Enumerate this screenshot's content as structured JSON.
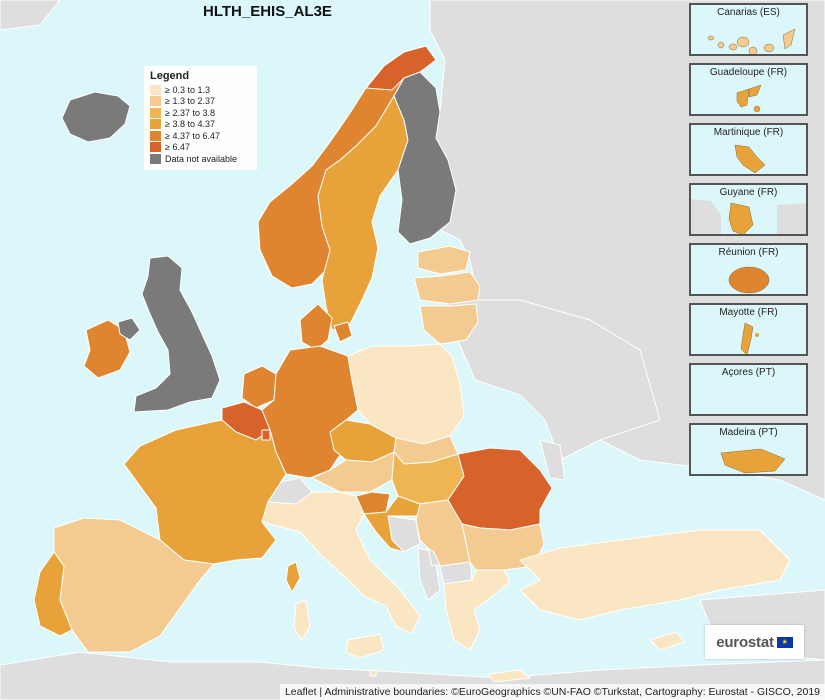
{
  "map": {
    "title": "HLTH_EHIS_AL3E",
    "legend": {
      "title": "Legend",
      "items": [
        {
          "label": "≥ 0.3 to 1.3",
          "color": "#fbe6c4"
        },
        {
          "label": "≥ 1.3 to 2.37",
          "color": "#f3ca8f"
        },
        {
          "label": "≥ 2.37 to 3.8",
          "color": "#efb552"
        },
        {
          "label": "≥ 3.8 to 4.37",
          "color": "#e7a33a"
        },
        {
          "label": "≥ 4.37 to 6.47",
          "color": "#df852f"
        },
        {
          "label": "≥ 6.47",
          "color": "#d7632b"
        },
        {
          "label": "Data not available",
          "color": "#7a7a7a"
        }
      ]
    },
    "colors": {
      "sea": "#dcf7fa",
      "non_eu": "#dedede",
      "no_data": "#7a7a7a",
      "border": "#ffffff"
    },
    "regions": [
      {
        "name": "Iceland",
        "class": "no_data"
      },
      {
        "name": "Norway",
        "class": "≥ 4.37 to 6.47"
      },
      {
        "name": "Sweden",
        "class": "≥ 3.8 to 4.37"
      },
      {
        "name": "Finland",
        "class": "no_data"
      },
      {
        "name": "Estonia",
        "class": "≥ 1.3 to 2.37"
      },
      {
        "name": "Latvia",
        "class": "≥ 1.3 to 2.37"
      },
      {
        "name": "Lithuania",
        "class": "≥ 1.3 to 2.37"
      },
      {
        "name": "Denmark",
        "class": "≥ 4.37 to 6.47"
      },
      {
        "name": "Ireland",
        "class": "≥ 4.37 to 6.47"
      },
      {
        "name": "United Kingdom",
        "class": "no_data"
      },
      {
        "name": "Netherlands",
        "class": "≥ 4.37 to 6.47"
      },
      {
        "name": "Belgium",
        "class": "≥ 6.47"
      },
      {
        "name": "Luxembourg",
        "class": "≥ 6.47"
      },
      {
        "name": "Germany",
        "class": "≥ 4.37 to 6.47"
      },
      {
        "name": "Poland",
        "class": "≥ 0.3 to 1.3"
      },
      {
        "name": "Czechia",
        "class": "≥ 3.8 to 4.37"
      },
      {
        "name": "Slovakia",
        "class": "≥ 1.3 to 2.37"
      },
      {
        "name": "Austria",
        "class": "≥ 1.3 to 2.37"
      },
      {
        "name": "Hungary",
        "class": "≥ 2.37 to 3.8"
      },
      {
        "name": "Slovenia",
        "class": "≥ 4.37 to 6.47"
      },
      {
        "name": "Croatia",
        "class": "≥ 3.8 to 4.37"
      },
      {
        "name": "Romania",
        "class": "≥ 6.47"
      },
      {
        "name": "Bulgaria",
        "class": "≥ 1.3 to 2.37"
      },
      {
        "name": "Serbia",
        "class": "≥ 1.3 to 2.37"
      },
      {
        "name": "France",
        "class": "≥ 3.8 to 4.37"
      },
      {
        "name": "Spain",
        "class": "≥ 1.3 to 2.37"
      },
      {
        "name": "Portugal",
        "class": "≥ 3.8 to 4.37"
      },
      {
        "name": "Italy",
        "class": "≥ 0.3 to 1.3"
      },
      {
        "name": "Corsica",
        "class": "≥ 3.8 to 4.37"
      },
      {
        "name": "Greece",
        "class": "≥ 0.3 to 1.3"
      },
      {
        "name": "Turkey",
        "class": "≥ 0.3 to 1.3"
      },
      {
        "name": "Cyprus",
        "class": "≥ 0.3 to 1.3"
      },
      {
        "name": "Malta",
        "class": "≥ 0.3 to 1.3"
      },
      {
        "name": "Switzerland",
        "class": "non_eu"
      },
      {
        "name": "Bosnia and Herzegovina",
        "class": "non_eu"
      }
    ],
    "insets": [
      {
        "label": "Canarias (ES)"
      },
      {
        "label": "Guadeloupe (FR)"
      },
      {
        "label": "Martinique (FR)"
      },
      {
        "label": "Guyane (FR)"
      },
      {
        "label": "Réunion (FR)"
      },
      {
        "label": "Mayotte (FR)"
      },
      {
        "label": "Açores (PT)"
      },
      {
        "label": "Madeira (PT)"
      }
    ],
    "logo_text": "eurostat",
    "attribution": "Leaflet | Administrative boundaries: ©EuroGeographics ©UN-FAO ©Turkstat, Cartography: Eurostat - GISCO, 2019"
  }
}
